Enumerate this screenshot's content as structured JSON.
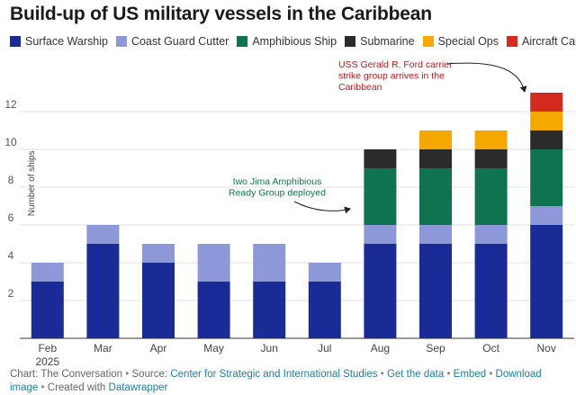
{
  "chart_data": {
    "type": "stacked-bar",
    "title": "Build-up of US military vessels in the Caribbean",
    "ylabel": "Number of ships",
    "xlabel": "",
    "ylim": [
      0,
      13
    ],
    "yticks": [
      2,
      4,
      6,
      8,
      10,
      12
    ],
    "categories": [
      "Feb",
      "Mar",
      "Apr",
      "May",
      "Jun",
      "Jul",
      "Aug",
      "Sep",
      "Oct",
      "Nov"
    ],
    "category_sublabels": [
      "2025",
      "",
      "",
      "",
      "",
      "",
      "",
      "",
      "",
      ""
    ],
    "series": [
      {
        "name": "Surface Warship",
        "color": "#1a2a97",
        "values": [
          3,
          5,
          4,
          3,
          3,
          3,
          5,
          5,
          5,
          6
        ]
      },
      {
        "name": "Coast Guard Cutter",
        "color": "#8d98d8",
        "values": [
          1,
          1,
          1,
          2,
          2,
          1,
          1,
          1,
          1,
          1
        ]
      },
      {
        "name": "Amphibious Ship",
        "color": "#10734f",
        "values": [
          0,
          0,
          0,
          0,
          0,
          0,
          3,
          3,
          3,
          3
        ]
      },
      {
        "name": "Submarine",
        "color": "#2b2b2b",
        "values": [
          0,
          0,
          0,
          0,
          0,
          0,
          1,
          1,
          1,
          1
        ]
      },
      {
        "name": "Special Ops",
        "color": "#f5a800",
        "values": [
          0,
          0,
          0,
          0,
          0,
          0,
          0,
          1,
          1,
          1
        ]
      },
      {
        "name": "Aircraft Carrier",
        "color": "#d42a1f",
        "values": [
          0,
          0,
          0,
          0,
          0,
          0,
          0,
          0,
          0,
          1
        ]
      }
    ],
    "annotations": [
      {
        "lines": [
          "USS Gerald R. Ford carrier",
          "strike group arrives in the",
          "Caribbean"
        ],
        "color": "#c0181d",
        "target": "Nov"
      },
      {
        "lines": [
          "Iwo Jima Amphibious",
          "Ready Group deployed"
        ],
        "color": "#10734f",
        "target": "Aug"
      }
    ]
  },
  "footer": {
    "prefix": "Chart: The Conversation",
    "source_label": "Source:",
    "source_link": "Center for Strategic and International Studies",
    "get_data": "Get the data",
    "embed": "Embed",
    "download": "Download image",
    "created_with": "Created with",
    "tool": "Datawrapper",
    "separator": "•"
  }
}
